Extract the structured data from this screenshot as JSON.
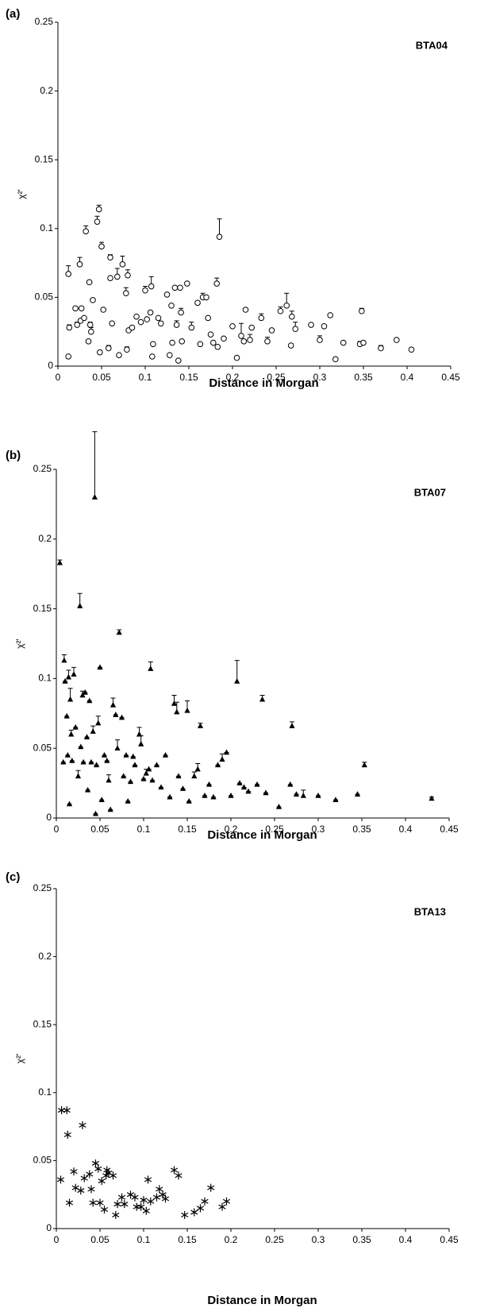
{
  "chart_data": [
    {
      "type": "scatter",
      "panel_label": "(a)",
      "title": "BTA04",
      "x_label": "Distance in Morgan",
      "y_label": "χ²'",
      "marker": "open-circle",
      "color": "#000000",
      "xlim": [
        0,
        0.45
      ],
      "ylim": [
        0,
        0.25
      ],
      "xticks": [
        0,
        0.05,
        0.1,
        0.15,
        0.2,
        0.25,
        0.3,
        0.35,
        0.4,
        0.45
      ],
      "yticks": [
        0,
        0.05,
        0.1,
        0.15,
        0.2,
        0.25
      ],
      "x": [
        0.012,
        0.012,
        0.013,
        0.02,
        0.022,
        0.025,
        0.026,
        0.027,
        0.03,
        0.032,
        0.035,
        0.036,
        0.037,
        0.038,
        0.04,
        0.045,
        0.047,
        0.048,
        0.05,
        0.052,
        0.058,
        0.06,
        0.06,
        0.062,
        0.068,
        0.07,
        0.074,
        0.078,
        0.079,
        0.08,
        0.081,
        0.085,
        0.09,
        0.095,
        0.1,
        0.102,
        0.106,
        0.107,
        0.108,
        0.109,
        0.115,
        0.118,
        0.125,
        0.128,
        0.13,
        0.131,
        0.134,
        0.136,
        0.138,
        0.14,
        0.141,
        0.142,
        0.148,
        0.153,
        0.16,
        0.163,
        0.166,
        0.17,
        0.172,
        0.175,
        0.178,
        0.182,
        0.183,
        0.185,
        0.19,
        0.2,
        0.205,
        0.21,
        0.213,
        0.215,
        0.22,
        0.222,
        0.233,
        0.24,
        0.245,
        0.255,
        0.262,
        0.267,
        0.268,
        0.272,
        0.29,
        0.3,
        0.305,
        0.312,
        0.318,
        0.327,
        0.346,
        0.348,
        0.35,
        0.37,
        0.388,
        0.405
      ],
      "y": [
        0.007,
        0.067,
        0.028,
        0.042,
        0.03,
        0.074,
        0.033,
        0.042,
        0.035,
        0.098,
        0.018,
        0.061,
        0.03,
        0.025,
        0.048,
        0.105,
        0.114,
        0.01,
        0.087,
        0.041,
        0.013,
        0.079,
        0.064,
        0.031,
        0.065,
        0.008,
        0.074,
        0.053,
        0.012,
        0.066,
        0.026,
        0.028,
        0.036,
        0.032,
        0.055,
        0.034,
        0.039,
        0.058,
        0.007,
        0.016,
        0.035,
        0.031,
        0.052,
        0.008,
        0.044,
        0.017,
        0.057,
        0.03,
        0.004,
        0.057,
        0.039,
        0.018,
        0.06,
        0.028,
        0.046,
        0.016,
        0.05,
        0.05,
        0.035,
        0.023,
        0.017,
        0.06,
        0.014,
        0.094,
        0.02,
        0.029,
        0.006,
        0.022,
        0.018,
        0.041,
        0.019,
        0.028,
        0.035,
        0.018,
        0.026,
        0.04,
        0.044,
        0.015,
        0.036,
        0.027,
        0.03,
        0.019,
        0.029,
        0.037,
        0.005,
        0.017,
        0.016,
        0.04,
        0.017,
        0.013,
        0.019,
        0.012
      ],
      "errors": [
        0,
        0.006,
        0.002,
        0,
        0.002,
        0.005,
        0,
        0,
        0,
        0.004,
        0,
        0,
        0.002,
        0.003,
        0,
        0.004,
        0.003,
        0,
        0.003,
        0,
        0.002,
        0.002,
        0,
        0,
        0.006,
        0,
        0.006,
        0.004,
        0.002,
        0.004,
        0,
        0,
        0,
        0,
        0.003,
        0,
        0,
        0.007,
        0,
        0,
        0,
        0,
        0,
        0,
        0,
        0,
        0,
        0.003,
        0,
        0,
        0.003,
        0,
        0,
        0.004,
        0,
        0,
        0.003,
        0,
        0,
        0,
        0,
        0.004,
        0,
        0.013,
        0,
        0,
        0,
        0.009,
        0,
        0,
        0.004,
        0,
        0.003,
        0.003,
        0,
        0.003,
        0.009,
        0,
        0.004,
        0.005,
        0,
        0.003,
        0,
        0,
        0,
        0,
        0.002,
        0.002,
        0,
        0.002,
        0,
        0.001
      ]
    },
    {
      "type": "scatter",
      "panel_label": "(b)",
      "title": "BTA07",
      "x_label": "Distance in Morgan",
      "y_label": "χ²'",
      "marker": "filled-triangle",
      "color": "#000000",
      "xlim": [
        0,
        0.45
      ],
      "ylim": [
        0,
        0.25
      ],
      "xticks": [
        0,
        0.05,
        0.1,
        0.15,
        0.2,
        0.25,
        0.3,
        0.35,
        0.4,
        0.45
      ],
      "yticks": [
        0,
        0.05,
        0.1,
        0.15,
        0.2,
        0.25
      ],
      "x": [
        0.004,
        0.008,
        0.009,
        0.01,
        0.012,
        0.013,
        0.014,
        0.015,
        0.016,
        0.017,
        0.018,
        0.02,
        0.022,
        0.025,
        0.027,
        0.028,
        0.03,
        0.031,
        0.033,
        0.035,
        0.036,
        0.038,
        0.04,
        0.042,
        0.044,
        0.045,
        0.046,
        0.048,
        0.05,
        0.052,
        0.055,
        0.058,
        0.06,
        0.062,
        0.065,
        0.068,
        0.07,
        0.072,
        0.075,
        0.077,
        0.08,
        0.082,
        0.085,
        0.088,
        0.09,
        0.095,
        0.097,
        0.1,
        0.103,
        0.106,
        0.108,
        0.11,
        0.115,
        0.12,
        0.125,
        0.13,
        0.135,
        0.138,
        0.14,
        0.145,
        0.15,
        0.152,
        0.158,
        0.162,
        0.165,
        0.17,
        0.175,
        0.18,
        0.185,
        0.19,
        0.195,
        0.2,
        0.207,
        0.21,
        0.215,
        0.22,
        0.23,
        0.236,
        0.24,
        0.255,
        0.268,
        0.27,
        0.275,
        0.283,
        0.3,
        0.32,
        0.345,
        0.353,
        0.43
      ],
      "y": [
        0.183,
        0.04,
        0.113,
        0.098,
        0.073,
        0.045,
        0.101,
        0.01,
        0.085,
        0.06,
        0.041,
        0.103,
        0.065,
        0.03,
        0.152,
        0.051,
        0.088,
        0.04,
        0.09,
        0.058,
        0.02,
        0.084,
        0.04,
        0.062,
        0.23,
        0.003,
        0.038,
        0.068,
        0.108,
        0.013,
        0.045,
        0.041,
        0.027,
        0.006,
        0.081,
        0.074,
        0.05,
        0.133,
        0.072,
        0.03,
        0.045,
        0.012,
        0.026,
        0.044,
        0.038,
        0.06,
        0.053,
        0.028,
        0.032,
        0.035,
        0.107,
        0.027,
        0.038,
        0.022,
        0.045,
        0.015,
        0.082,
        0.076,
        0.03,
        0.021,
        0.077,
        0.012,
        0.03,
        0.035,
        0.066,
        0.016,
        0.024,
        0.015,
        0.038,
        0.042,
        0.047,
        0.016,
        0.098,
        0.025,
        0.022,
        0.019,
        0.024,
        0.085,
        0.018,
        0.008,
        0.024,
        0.066,
        0.017,
        0.016,
        0.016,
        0.013,
        0.017,
        0.038,
        0.014
      ],
      "errors": [
        0.002,
        0,
        0.004,
        0,
        0,
        0,
        0.005,
        0,
        0.008,
        0.003,
        0,
        0.005,
        0,
        0.004,
        0.009,
        0,
        0.003,
        0,
        0,
        0,
        0,
        0,
        0,
        0.004,
        0.047,
        0,
        0,
        0.005,
        0,
        0,
        0,
        0,
        0.004,
        0,
        0.005,
        0,
        0.006,
        0.002,
        0,
        0,
        0,
        0,
        0,
        0,
        0,
        0.005,
        0.006,
        0,
        0.003,
        0,
        0.005,
        0,
        0,
        0,
        0,
        0,
        0.006,
        0.007,
        0,
        0,
        0.007,
        0,
        0.003,
        0.004,
        0.002,
        0,
        0,
        0,
        0,
        0.004,
        0,
        0,
        0.015,
        0,
        0,
        0,
        0,
        0.003,
        0,
        0,
        0,
        0.003,
        0,
        0.004,
        0,
        0,
        0,
        0.002,
        0.001
      ]
    },
    {
      "type": "scatter",
      "panel_label": "(c)",
      "title": "BTA13",
      "x_label": "Distance in Morgan",
      "y_label": "χ²'",
      "marker": "asterisk",
      "color": "#000000",
      "xlim": [
        0,
        0.45
      ],
      "ylim": [
        0,
        0.25
      ],
      "xticks": [
        0,
        0.05,
        0.1,
        0.15,
        0.2,
        0.25,
        0.3,
        0.35,
        0.4,
        0.45
      ],
      "yticks": [
        0,
        0.05,
        0.1,
        0.15,
        0.2,
        0.25
      ],
      "x": [
        0.005,
        0.006,
        0.012,
        0.013,
        0.015,
        0.02,
        0.022,
        0.028,
        0.03,
        0.032,
        0.038,
        0.04,
        0.042,
        0.045,
        0.048,
        0.05,
        0.052,
        0.055,
        0.057,
        0.058,
        0.06,
        0.065,
        0.068,
        0.07,
        0.075,
        0.078,
        0.085,
        0.09,
        0.092,
        0.097,
        0.1,
        0.103,
        0.105,
        0.108,
        0.115,
        0.118,
        0.122,
        0.125,
        0.135,
        0.14,
        0.147,
        0.158,
        0.165,
        0.17,
        0.177,
        0.19,
        0.195
      ],
      "y": [
        0.036,
        0.087,
        0.087,
        0.069,
        0.019,
        0.042,
        0.03,
        0.028,
        0.076,
        0.037,
        0.04,
        0.029,
        0.019,
        0.048,
        0.044,
        0.019,
        0.035,
        0.014,
        0.039,
        0.043,
        0.041,
        0.039,
        0.01,
        0.018,
        0.023,
        0.018,
        0.025,
        0.023,
        0.016,
        0.016,
        0.021,
        0.013,
        0.036,
        0.02,
        0.023,
        0.029,
        0.025,
        0.022,
        0.043,
        0.039,
        0.01,
        0.012,
        0.015,
        0.02,
        0.03,
        0.016,
        0.02
      ]
    }
  ]
}
